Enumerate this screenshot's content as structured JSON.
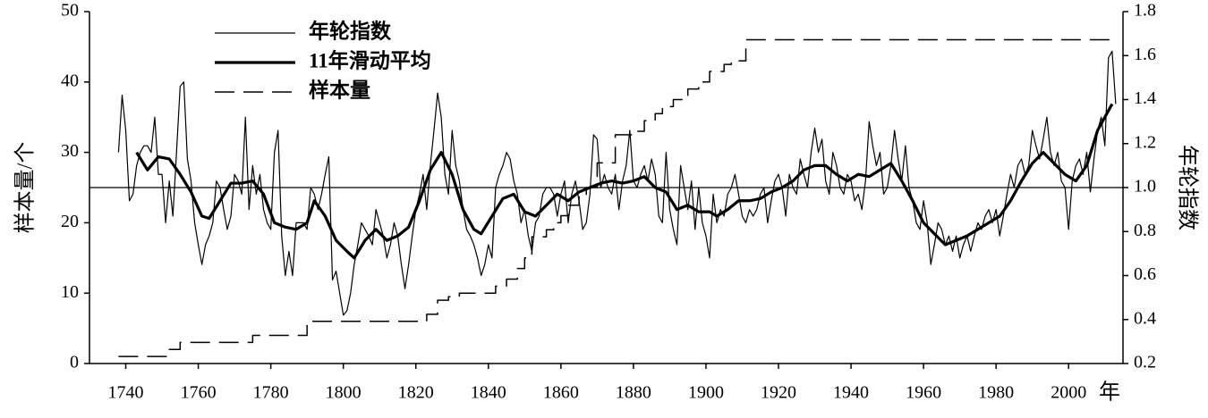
{
  "chart_data": {
    "type": "line",
    "xlabel": "年",
    "ylabel": "样本量/个",
    "y2label": "年轮指数",
    "xlim": [
      1730,
      2015
    ],
    "xticks": [
      1740,
      1760,
      1780,
      1800,
      1820,
      1840,
      1860,
      1880,
      1900,
      1920,
      1940,
      1960,
      1980,
      2000
    ],
    "ylim": [
      0,
      50
    ],
    "yticks": [
      0,
      10,
      20,
      30,
      40,
      50
    ],
    "y2lim": [
      0.2,
      1.8
    ],
    "y2ticks": [
      0.2,
      0.4,
      0.6,
      0.8,
      {
        "value": 1,
        "label": "1.0"
      },
      1.2,
      1.4,
      1.6,
      1.8
    ],
    "hline": {
      "value": 1,
      "axis": "y2"
    },
    "legend": "upper left",
    "x": [
      1738,
      1739,
      1740,
      1741,
      1742,
      1743,
      1744,
      1745,
      1746,
      1747,
      1748,
      1749,
      1750,
      1751,
      1752,
      1753,
      1754,
      1755,
      1756,
      1757,
      1758,
      1759,
      1760,
      1761,
      1762,
      1763,
      1764,
      1765,
      1766,
      1767,
      1768,
      1769,
      1770,
      1771,
      1772,
      1773,
      1774,
      1775,
      1776,
      1777,
      1778,
      1779,
      1780,
      1781,
      1782,
      1783,
      1784,
      1785,
      1786,
      1787,
      1788,
      1789,
      1790,
      1791,
      1792,
      1793,
      1794,
      1795,
      1796,
      1797,
      1798,
      1799,
      1800,
      1801,
      1802,
      1803,
      1804,
      1805,
      1806,
      1807,
      1808,
      1809,
      1810,
      1811,
      1812,
      1813,
      1814,
      1815,
      1816,
      1817,
      1818,
      1819,
      1820,
      1821,
      1822,
      1823,
      1824,
      1825,
      1826,
      1827,
      1828,
      1829,
      1830,
      1831,
      1832,
      1833,
      1834,
      1835,
      1836,
      1837,
      1838,
      1839,
      1840,
      1841,
      1842,
      1843,
      1844,
      1845,
      1846,
      1847,
      1848,
      1849,
      1850,
      1851,
      1852,
      1853,
      1854,
      1855,
      1856,
      1857,
      1858,
      1859,
      1860,
      1861,
      1862,
      1863,
      1864,
      1865,
      1866,
      1867,
      1868,
      1869,
      1870,
      1871,
      1872,
      1873,
      1874,
      1875,
      1876,
      1877,
      1878,
      1879,
      1880,
      1881,
      1882,
      1883,
      1884,
      1885,
      1886,
      1887,
      1888,
      1889,
      1890,
      1891,
      1892,
      1893,
      1894,
      1895,
      1896,
      1897,
      1898,
      1899,
      1900,
      1901,
      1902,
      1903,
      1904,
      1905,
      1906,
      1907,
      1908,
      1909,
      1910,
      1911,
      1912,
      1913,
      1914,
      1915,
      1916,
      1917,
      1918,
      1919,
      1920,
      1921,
      1922,
      1923,
      1924,
      1925,
      1926,
      1927,
      1928,
      1929,
      1930,
      1931,
      1932,
      1933,
      1934,
      1935,
      1936,
      1937,
      1938,
      1939,
      1940,
      1941,
      1942,
      1943,
      1944,
      1945,
      1946,
      1947,
      1948,
      1949,
      1950,
      1951,
      1952,
      1953,
      1954,
      1955,
      1956,
      1957,
      1958,
      1959,
      1960,
      1961,
      1962,
      1963,
      1964,
      1965,
      1966,
      1967,
      1968,
      1969,
      1970,
      1971,
      1972,
      1973,
      1974,
      1975,
      1976,
      1977,
      1978,
      1979,
      1980,
      1981,
      1982,
      1983,
      1984,
      1985,
      1986,
      1987,
      1988,
      1989,
      1990,
      1991,
      1992,
      1993,
      1994,
      1995,
      1996,
      1997,
      1998,
      1999,
      2000,
      2001,
      2002,
      2003,
      2004,
      2005,
      2006,
      2007,
      2008,
      2009,
      2010,
      2011,
      2012,
      2013
    ],
    "series": [
      {
        "name": "年轮指数",
        "color": "#000000",
        "axis": "y2",
        "line_style": "thin",
        "values": [
          1.16,
          1.42,
          1.26,
          0.94,
          0.97,
          1.1,
          1.16,
          1.19,
          1.19,
          1.16,
          1.32,
          1.06,
          1.06,
          0.84,
          1.03,
          0.87,
          1.16,
          1.46,
          1.48,
          1.13,
          1.03,
          0.84,
          0.74,
          0.65,
          0.74,
          0.78,
          0.84,
          1.03,
          1.0,
          0.9,
          0.81,
          0.87,
          1.06,
          1.03,
          0.97,
          1.32,
          0.9,
          1.1,
          0.97,
          1.06,
          0.9,
          0.84,
          0.81,
          1.16,
          1.26,
          0.78,
          0.6,
          0.71,
          0.6,
          0.84,
          0.84,
          0.84,
          0.81,
          1.0,
          0.97,
          0.9,
          0.97,
          1.06,
          1.14,
          0.58,
          0.62,
          0.52,
          0.42,
          0.44,
          0.52,
          0.65,
          0.74,
          0.84,
          0.81,
          0.78,
          0.74,
          0.9,
          0.84,
          0.78,
          0.68,
          0.74,
          0.84,
          0.78,
          0.65,
          0.54,
          0.65,
          0.78,
          0.9,
          0.97,
          1.06,
          0.9,
          1.1,
          1.26,
          1.43,
          1.32,
          1.06,
          0.97,
          1.26,
          1.1,
          1.03,
          0.9,
          0.81,
          0.78,
          0.74,
          0.68,
          0.6,
          0.65,
          0.74,
          0.68,
          1.0,
          1.06,
          1.1,
          1.16,
          1.13,
          1.03,
          0.97,
          0.84,
          0.9,
          0.78,
          0.71,
          0.84,
          0.87,
          0.97,
          1.0,
          1.0,
          0.97,
          0.87,
          0.97,
          1.03,
          0.84,
          0.97,
          1.03,
          0.94,
          0.81,
          0.84,
          0.97,
          1.24,
          1.22,
          1.0,
          1.06,
          1.0,
          0.97,
          1.06,
          0.9,
          1.03,
          1.1,
          1.26,
          1.03,
          1.0,
          1.06,
          1.1,
          1.03,
          1.13,
          1.06,
          0.87,
          0.84,
          1.16,
          0.9,
          0.81,
          0.74,
          1.1,
          1.0,
          0.9,
          1.03,
          0.81,
          1.0,
          0.84,
          0.78,
          0.68,
          0.97,
          0.84,
          0.9,
          0.87,
          0.97,
          1.0,
          1.06,
          0.97,
          0.87,
          0.84,
          0.9,
          0.87,
          0.9,
          0.97,
          1.0,
          0.84,
          0.94,
          1.03,
          1.06,
          1.0,
          0.87,
          1.06,
          1.0,
          0.97,
          1.13,
          1.06,
          1.0,
          1.16,
          1.27,
          1.16,
          1.22,
          1.03,
          0.97,
          1.16,
          1.1,
          1.0,
          0.97,
          1.06,
          1.03,
          0.94,
          0.97,
          0.9,
          1.03,
          1.3,
          1.19,
          1.1,
          1.16,
          0.97,
          1.0,
          1.1,
          1.26,
          1.13,
          1.03,
          1.19,
          1.0,
          0.94,
          0.84,
          0.81,
          0.94,
          0.84,
          0.65,
          0.74,
          0.84,
          0.81,
          0.74,
          0.78,
          0.71,
          0.78,
          0.68,
          0.74,
          0.78,
          0.71,
          0.78,
          0.84,
          0.81,
          0.87,
          0.9,
          0.84,
          0.9,
          0.78,
          0.87,
          0.97,
          1.06,
          1.0,
          1.1,
          1.13,
          1.06,
          1.1,
          1.26,
          1.19,
          1.13,
          1.22,
          1.32,
          1.16,
          1.1,
          1.16,
          1.03,
          1.0,
          0.81,
          1.03,
          1.1,
          1.13,
          1.06,
          1.16,
          0.98,
          1.13,
          1.26,
          1.32,
          1.19,
          1.59,
          1.62,
          1.38
        ]
      },
      {
        "name": "11年滑动平均",
        "color": "#000000",
        "axis": "y2",
        "line_style": "thick",
        "x": [
          1743,
          1746,
          1749,
          1752,
          1755,
          1758,
          1761,
          1763,
          1766,
          1769,
          1772,
          1775,
          1778,
          1781,
          1784,
          1787,
          1790,
          1792,
          1795,
          1798,
          1801,
          1803,
          1806,
          1809,
          1812,
          1815,
          1818,
          1821,
          1824,
          1827,
          1830,
          1833,
          1836,
          1838,
          1841,
          1844,
          1847,
          1850,
          1853,
          1856,
          1859,
          1862,
          1865,
          1868,
          1871,
          1874,
          1877,
          1880,
          1883,
          1886,
          1889,
          1892,
          1895,
          1898,
          1901,
          1903,
          1906,
          1909,
          1912,
          1915,
          1918,
          1921,
          1924,
          1927,
          1930,
          1933,
          1936,
          1939,
          1942,
          1945,
          1948,
          1951,
          1954,
          1957,
          1960,
          1963,
          1966,
          1969,
          1972,
          1975,
          1978,
          1981,
          1984,
          1987,
          1990,
          1993,
          1996,
          1999,
          2002,
          2005,
          2008,
          2011,
          2012
        ],
        "values": [
          1.16,
          1.08,
          1.14,
          1.13,
          1.06,
          0.98,
          0.87,
          0.86,
          0.94,
          1.02,
          1.02,
          1.03,
          0.97,
          0.84,
          0.82,
          0.81,
          0.84,
          0.94,
          0.87,
          0.76,
          0.71,
          0.68,
          0.76,
          0.81,
          0.76,
          0.78,
          0.82,
          0.94,
          1.08,
          1.16,
          1.06,
          0.9,
          0.81,
          0.79,
          0.87,
          0.95,
          0.97,
          0.89,
          0.87,
          0.92,
          0.97,
          0.94,
          0.98,
          1.0,
          1.02,
          1.03,
          1.02,
          1.03,
          1.05,
          1.0,
          0.98,
          0.9,
          0.92,
          0.89,
          0.89,
          0.87,
          0.9,
          0.94,
          0.94,
          0.95,
          0.98,
          1.0,
          1.03,
          1.08,
          1.1,
          1.1,
          1.06,
          1.03,
          1.06,
          1.05,
          1.08,
          1.11,
          1.03,
          0.94,
          0.84,
          0.79,
          0.74,
          0.76,
          0.78,
          0.81,
          0.84,
          0.87,
          0.94,
          1.03,
          1.11,
          1.16,
          1.11,
          1.06,
          1.03,
          1.1,
          1.26,
          1.35,
          1.38
        ]
      },
      {
        "name": "样本量",
        "color": "#000000",
        "line_style": "dashed",
        "x": [
          1738,
          1752,
          1752,
          1755,
          1755,
          1775,
          1775,
          1790,
          1790,
          1823,
          1823,
          1826,
          1826,
          1829,
          1829,
          1832,
          1832,
          1842,
          1842,
          1845,
          1845,
          1848,
          1848,
          1850,
          1850,
          1852,
          1852,
          1856,
          1856,
          1858,
          1858,
          1860,
          1860,
          1862,
          1862,
          1865,
          1865,
          1867,
          1867,
          1870,
          1870,
          1875,
          1875,
          1880,
          1880,
          1883,
          1883,
          1886,
          1886,
          1888,
          1888,
          1891,
          1891,
          1895,
          1895,
          1898,
          1898,
          1901,
          1901,
          1905,
          1905,
          1907,
          1907,
          1911,
          1911,
          2013
        ],
        "values": [
          1,
          1,
          2,
          2,
          3,
          3,
          4,
          4,
          6,
          6,
          7,
          7,
          9,
          9,
          9.5,
          9.5,
          10,
          10,
          11,
          11,
          12,
          12,
          13.5,
          13.5,
          15,
          15,
          18,
          18,
          19,
          19,
          20,
          20,
          21,
          21,
          22.5,
          22.5,
          24,
          24,
          25,
          25,
          28.5,
          28.5,
          32.5,
          32.5,
          33,
          33,
          34.5,
          34.5,
          35.5,
          35.5,
          36.5,
          36.5,
          37.5,
          37.5,
          39,
          39,
          40,
          40,
          41.5,
          41.5,
          42.5,
          42.5,
          43,
          43,
          46,
          46
        ]
      }
    ]
  }
}
